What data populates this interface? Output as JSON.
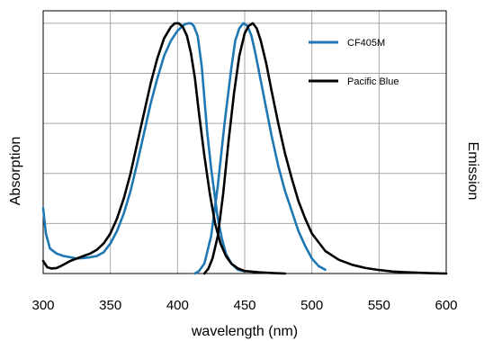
{
  "chart_data": {
    "type": "line",
    "title": "",
    "xlabel": "wavelength (nm)",
    "ylabel_left": "Absorption",
    "ylabel_right": "Emission",
    "xlim": [
      300,
      600
    ],
    "ylim": [
      0,
      1.05
    ],
    "x_ticks": [
      300,
      350,
      400,
      450,
      500,
      550,
      600
    ],
    "y_gridlines": [
      0.2,
      0.4,
      0.6,
      0.8,
      1.0
    ],
    "grid": true,
    "legend_position": "top-right",
    "series": [
      {
        "name": "CF405M",
        "kind": "absorption",
        "color": "#1f77b4",
        "x": [
          300,
          302,
          305,
          310,
          315,
          320,
          325,
          330,
          335,
          340,
          345,
          350,
          355,
          360,
          365,
          370,
          375,
          380,
          385,
          390,
          395,
          400,
          405,
          408,
          410,
          412,
          415,
          418,
          420,
          422,
          425,
          428,
          430,
          433,
          436,
          440,
          445,
          450
        ],
        "y": [
          0.26,
          0.16,
          0.1,
          0.08,
          0.07,
          0.065,
          0.06,
          0.062,
          0.065,
          0.07,
          0.085,
          0.12,
          0.17,
          0.24,
          0.33,
          0.44,
          0.56,
          0.68,
          0.78,
          0.87,
          0.93,
          0.97,
          0.995,
          1.0,
          1.0,
          0.99,
          0.95,
          0.83,
          0.7,
          0.57,
          0.42,
          0.3,
          0.22,
          0.14,
          0.08,
          0.04,
          0.015,
          0.008
        ]
      },
      {
        "name": "CF405M",
        "kind": "emission",
        "color": "#1f77b4",
        "x": [
          413,
          416,
          420,
          425,
          430,
          435,
          440,
          443,
          446,
          449,
          452,
          455,
          458,
          462,
          466,
          470,
          475,
          480,
          485,
          490,
          495,
          500,
          505,
          510
        ],
        "y": [
          0.0,
          0.01,
          0.04,
          0.15,
          0.35,
          0.6,
          0.82,
          0.93,
          0.98,
          1.0,
          0.99,
          0.95,
          0.88,
          0.77,
          0.66,
          0.55,
          0.43,
          0.33,
          0.25,
          0.17,
          0.11,
          0.06,
          0.03,
          0.015
        ]
      },
      {
        "name": "Pacific Blue",
        "kind": "absorption",
        "color": "#000000",
        "x": [
          300,
          303,
          306,
          310,
          315,
          320,
          325,
          330,
          335,
          340,
          345,
          350,
          355,
          360,
          365,
          370,
          375,
          380,
          385,
          390,
          395,
          398,
          401,
          404,
          407,
          410,
          413,
          416,
          420,
          424,
          428,
          432,
          436,
          440,
          445,
          450,
          460,
          470,
          480
        ],
        "y": [
          0.05,
          0.025,
          0.02,
          0.022,
          0.035,
          0.05,
          0.06,
          0.07,
          0.08,
          0.095,
          0.12,
          0.16,
          0.22,
          0.3,
          0.4,
          0.52,
          0.64,
          0.76,
          0.86,
          0.94,
          0.985,
          1.0,
          1.0,
          0.985,
          0.95,
          0.88,
          0.78,
          0.64,
          0.47,
          0.32,
          0.2,
          0.12,
          0.07,
          0.04,
          0.02,
          0.01,
          0.005,
          0.002,
          0.0
        ]
      },
      {
        "name": "Pacific Blue",
        "kind": "emission",
        "color": "#000000",
        "x": [
          420,
          423,
          426,
          430,
          434,
          438,
          442,
          446,
          450,
          453,
          456,
          459,
          462,
          466,
          470,
          475,
          480,
          485,
          490,
          495,
          500,
          510,
          520,
          530,
          540,
          550,
          560,
          570,
          580,
          590,
          600
        ],
        "y": [
          0.0,
          0.02,
          0.06,
          0.15,
          0.32,
          0.53,
          0.72,
          0.87,
          0.96,
          0.99,
          1.0,
          0.98,
          0.93,
          0.84,
          0.73,
          0.6,
          0.48,
          0.38,
          0.29,
          0.22,
          0.16,
          0.09,
          0.055,
          0.035,
          0.022,
          0.014,
          0.008,
          0.005,
          0.003,
          0.001,
          0.0
        ]
      }
    ],
    "legend": [
      {
        "label": "CF405M",
        "color": "#1f77b4"
      },
      {
        "label": "Pacific Blue",
        "color": "#000000"
      }
    ]
  }
}
